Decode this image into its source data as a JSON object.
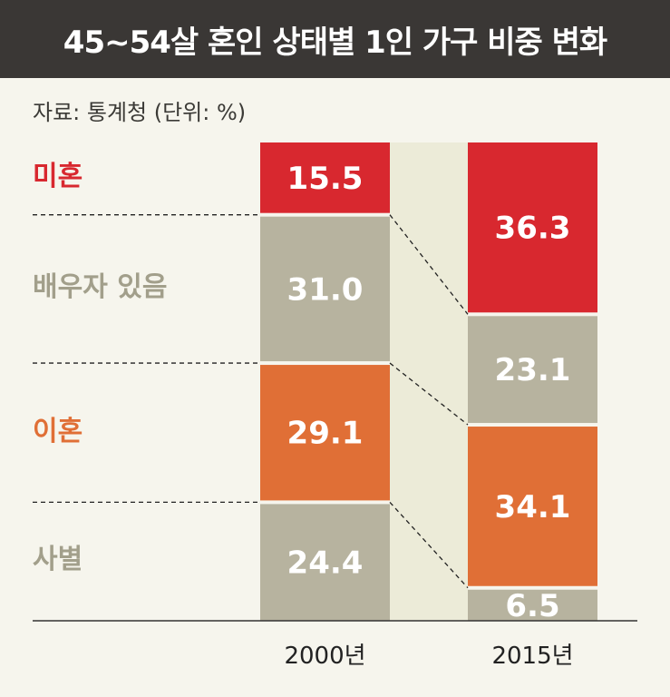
{
  "title": "45~54살 혼인 상태별 1인 가구 비중 변화",
  "source": "자료: 통계청 (단위: %)",
  "colors": {
    "미혼": "#d8282f",
    "배우자 있음": "#b7b39f",
    "이혼": "#e06f36",
    "사별": "#b7b39f",
    "label_미혼": "#d8282f",
    "label_배우자 있음": "#a29f8b",
    "label_이혼": "#e06f36",
    "label_사별": "#a29f8b",
    "background": "#f6f5ed",
    "title_bar": "#3a3735",
    "connector_band": "#ecebd8"
  },
  "chart_data": {
    "type": "bar",
    "stacked": true,
    "categories": [
      "2000년",
      "2015년"
    ],
    "series": [
      {
        "name": "미혼",
        "values": [
          15.5,
          36.3
        ]
      },
      {
        "name": "배우자 있음",
        "values": [
          31.0,
          23.1
        ]
      },
      {
        "name": "이혼",
        "values": [
          29.1,
          34.1
        ]
      },
      {
        "name": "사별",
        "values": [
          24.4,
          6.5
        ]
      }
    ],
    "value_labels": [
      [
        "15.5",
        "36.3"
      ],
      [
        "31.0",
        "23.1"
      ],
      [
        "29.1",
        "34.1"
      ],
      [
        "24.4",
        "6.5"
      ]
    ],
    "ylim": [
      0,
      100
    ],
    "grid": false,
    "legend": "left"
  }
}
